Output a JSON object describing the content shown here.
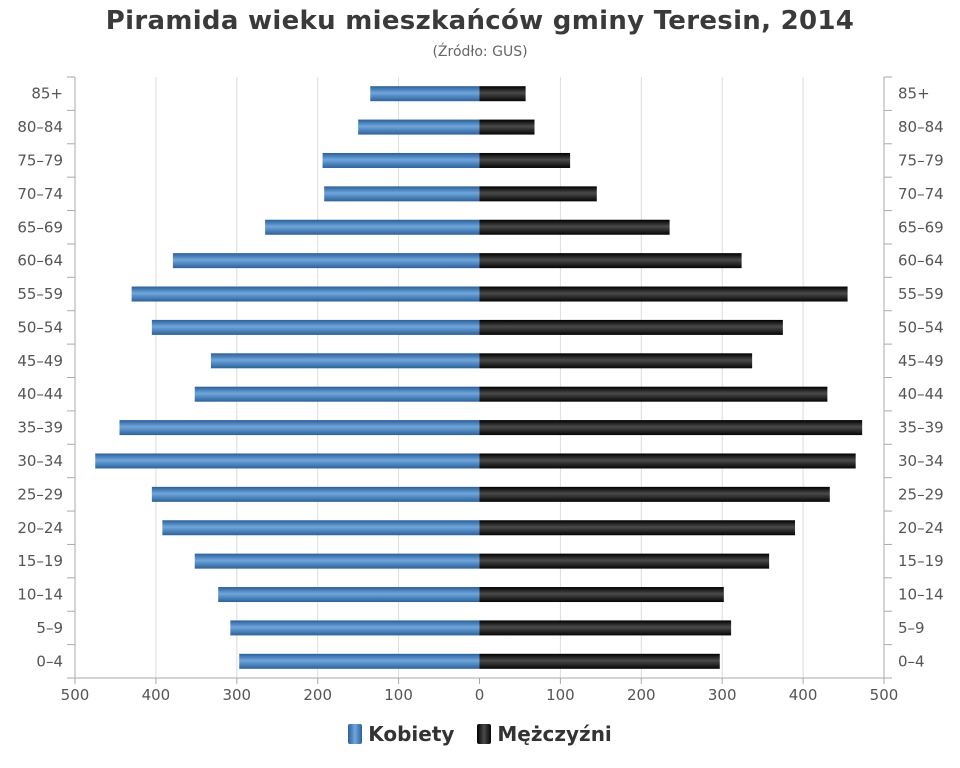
{
  "chart_data": {
    "type": "bar",
    "orientation": "horizontal",
    "title": "Piramida wieku mieszkańców gminy Teresin, 2014",
    "subtitle": "(Źródło: GUS)",
    "categories": [
      "85+",
      "80–84",
      "75–79",
      "70–74",
      "65–69",
      "60–64",
      "55–59",
      "50–54",
      "45–49",
      "40–44",
      "35–39",
      "30–34",
      "25–29",
      "20–24",
      "15–19",
      "10–14",
      "5–9",
      "0–4"
    ],
    "series": [
      {
        "name": "Kobiety",
        "side": "left",
        "color": "#3d79b6",
        "values": [
          135,
          150,
          194,
          192,
          265,
          379,
          430,
          405,
          332,
          352,
          445,
          475,
          405,
          392,
          352,
          323,
          308,
          297
        ]
      },
      {
        "name": "Mężczyźni",
        "side": "right",
        "color": "#1a1a1a",
        "values": [
          57,
          68,
          112,
          145,
          235,
          324,
          455,
          375,
          337,
          430,
          473,
          465,
          433,
          390,
          358,
          302,
          311,
          297
        ]
      }
    ],
    "xlim": [
      -500,
      500
    ],
    "x_ticks": [
      -500,
      -400,
      -300,
      -200,
      -100,
      0,
      100,
      200,
      300,
      400,
      500
    ],
    "x_tick_labels": [
      "500",
      "400",
      "300",
      "200",
      "100",
      "0",
      "100",
      "200",
      "300",
      "400",
      "500"
    ],
    "grid": true,
    "legend_position": "bottom-center"
  }
}
